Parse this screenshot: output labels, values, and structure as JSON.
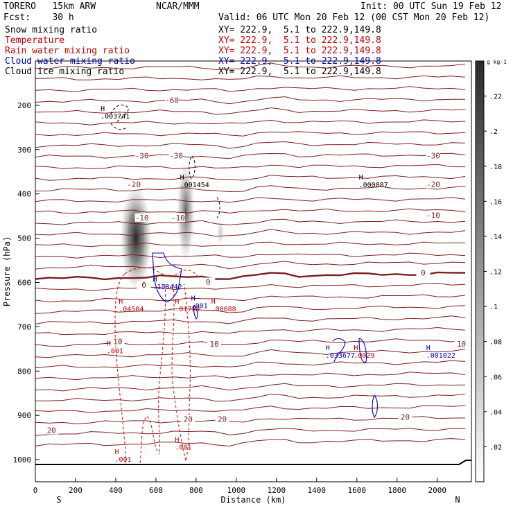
{
  "header": {
    "model": "TORERO   15km ARW",
    "center": "NCAR/MMM",
    "init": "Init: 00 UTC Sun 19 Feb 12",
    "fcst": "Fcst:    30 h",
    "valid": "Valid: 06 UTC Mon 20 Feb 12 (00 CST Mon 20 Feb 12)"
  },
  "fields": [
    {
      "name": "Snow mixing ratio",
      "xy": "XY= 222.9,  5.1 to 222.9,149.8",
      "color": "#000000"
    },
    {
      "name": "Temperature",
      "xy": "XY= 222.9,  5.1 to 222.9,149.8",
      "color": "#c00000"
    },
    {
      "name": "Rain water mixing ratio",
      "xy": "XY= 222.9,  5.1 to 222.9,149.8",
      "color": "#c00000"
    },
    {
      "name": "Cloud water mixing ratio",
      "xy": "XY= 222.9,  5.1 to 222.9,149.8",
      "color": "#0000c0"
    },
    {
      "name": "Cloud ice mixing ratio",
      "xy": "XY= 222.9,  5.1 to 222.9,149.8",
      "color": "#000000"
    }
  ],
  "chart_data": {
    "type": "cross-section",
    "xlabel": "Distance (km)",
    "ylabel": "Pressure (hPa)",
    "xlim": [
      0,
      2170
    ],
    "ylim": [
      1050,
      100
    ],
    "x_ticks": [
      0,
      200,
      400,
      600,
      800,
      1000,
      1200,
      1400,
      1600,
      1800,
      2000
    ],
    "y_ticks": [
      200,
      300,
      400,
      500,
      600,
      700,
      800,
      900,
      1000
    ],
    "x_end_labels": {
      "left": "S",
      "right": "N"
    },
    "colorbar": {
      "unit": "g kg-1",
      "tick_labels": [
        ".02",
        ".04",
        ".06",
        ".08",
        ".1",
        ".12",
        ".14",
        ".16",
        ".18",
        ".2",
        ".22"
      ],
      "range": [
        0,
        0.24
      ],
      "colors": [
        "#ffffff",
        "#2a2a2a"
      ]
    },
    "isotherm_labels": [
      {
        "text": "-60",
        "x": 680,
        "p": 190
      },
      {
        "text": "-30",
        "x": 530,
        "p": 315
      },
      {
        "text": "-30",
        "x": 700,
        "p": 315
      },
      {
        "text": "-30",
        "x": 1980,
        "p": 315
      },
      {
        "text": "-20",
        "x": 490,
        "p": 380
      },
      {
        "text": "-20",
        "x": 1980,
        "p": 380
      },
      {
        "text": "-10",
        "x": 530,
        "p": 455
      },
      {
        "text": "-10",
        "x": 710,
        "p": 455
      },
      {
        "text": "-10",
        "x": 1980,
        "p": 450
      },
      {
        "text": "0",
        "x": 540,
        "p": 607
      },
      {
        "text": "0",
        "x": 860,
        "p": 600
      },
      {
        "text": "0",
        "x": 1930,
        "p": 580
      },
      {
        "text": "10",
        "x": 410,
        "p": 735
      },
      {
        "text": "10",
        "x": 890,
        "p": 740
      },
      {
        "text": "10",
        "x": 2120,
        "p": 740
      },
      {
        "text": "20",
        "x": 80,
        "p": 935
      },
      {
        "text": "20",
        "x": 760,
        "p": 910
      },
      {
        "text": "20",
        "x": 930,
        "p": 910
      },
      {
        "text": "20",
        "x": 1840,
        "p": 905
      }
    ],
    "maxima": [
      {
        "field": "snow",
        "value": ".003741",
        "x": 380,
        "p": 230,
        "color": "#000000"
      },
      {
        "field": "snow",
        "value": ".001454",
        "x": 775,
        "p": 385,
        "color": "#000000"
      },
      {
        "field": "snow",
        "value": ".000087",
        "x": 1665,
        "p": 385,
        "color": "#000000"
      },
      {
        "field": "cloud",
        "value": ".150442",
        "x": 640,
        "p": 615,
        "color": "#0000c0"
      },
      {
        "field": "cloud",
        "value": ".001",
        "x": 830,
        "p": 658,
        "color": "#0000c0"
      },
      {
        "field": "rain",
        "value": ".04504",
        "x": 470,
        "p": 665,
        "color": "#c00000"
      },
      {
        "field": "rain",
        "value": ".01753",
        "x": 750,
        "p": 665,
        "color": "#c00000"
      },
      {
        "field": "rain",
        "value": ".00088",
        "x": 930,
        "p": 665,
        "color": "#c00000"
      },
      {
        "field": "rain",
        "value": ".001",
        "x": 410,
        "p": 760,
        "color": "#c00000"
      },
      {
        "field": "cloud",
        "value": ".033677",
        "x": 1500,
        "p": 770,
        "color": "#0000c0"
      },
      {
        "field": "rain",
        "value": ".0029",
        "x": 1640,
        "p": 770,
        "color": "#c00000"
      },
      {
        "field": "cloud",
        "value": ".001022",
        "x": 2000,
        "p": 770,
        "color": "#0000c0"
      },
      {
        "field": "rain",
        "value": ".001",
        "x": 750,
        "p": 977,
        "color": "#c00000"
      },
      {
        "field": "rain",
        "value": ".001",
        "x": 450,
        "p": 1005,
        "color": "#c00000"
      }
    ]
  }
}
